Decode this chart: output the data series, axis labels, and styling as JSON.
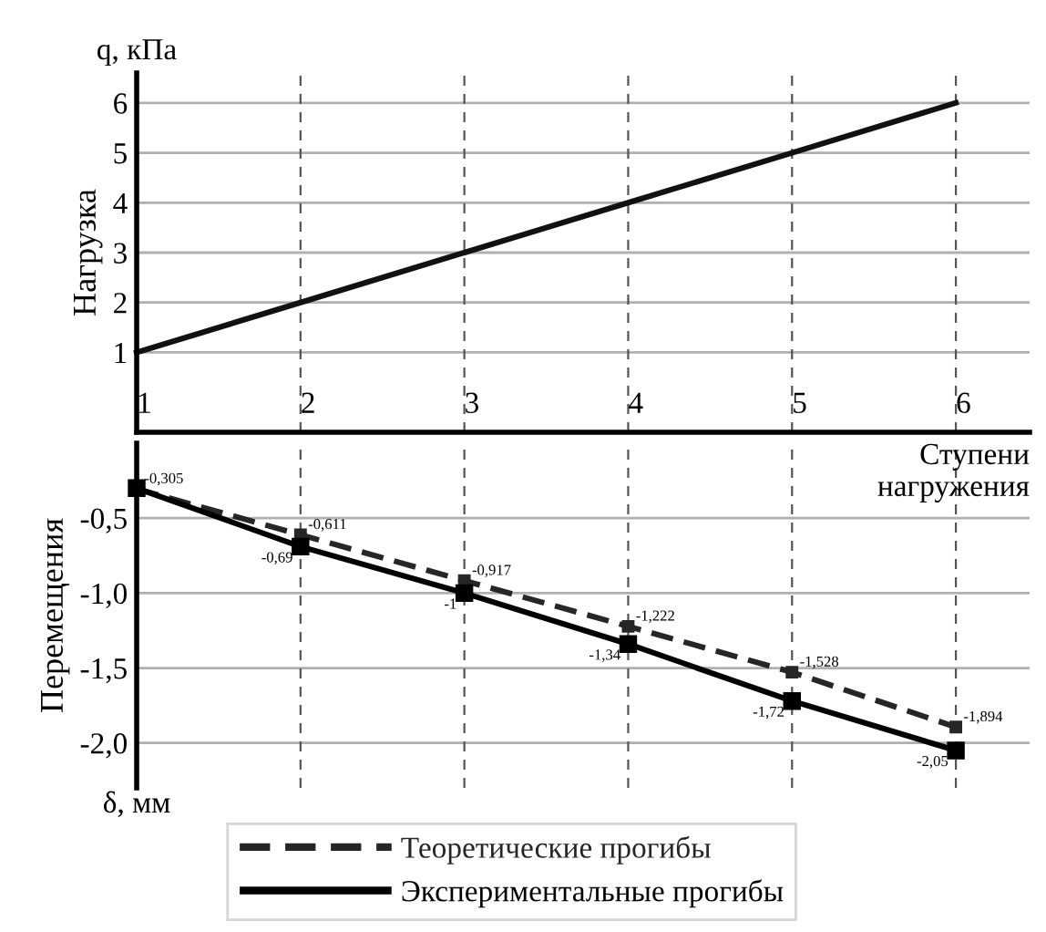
{
  "chart_data": [
    {
      "type": "line",
      "ylabel": "Нагрузка",
      "xlabel": "Ступени\nнагружения",
      "annotations": [
        "q, кПа"
      ],
      "x": [
        1,
        2,
        3,
        4,
        5,
        6
      ],
      "xlim": [
        1,
        6.45
      ],
      "xticks": [
        1,
        2,
        3,
        4,
        5,
        6
      ],
      "ylim": [
        -0.6,
        6.6
      ],
      "yticks": [
        1,
        2,
        3,
        4,
        5,
        6
      ],
      "grid": true,
      "marker": "none",
      "series": [
        {
          "color": "#111111",
          "values": [
            1,
            2,
            3,
            4,
            5,
            6
          ],
          "line_style": "solid"
        }
      ]
    },
    {
      "type": "line",
      "ylabel": "Перемещения",
      "annotations": [
        "δ, мм"
      ],
      "tick_labels": "y",
      "legend": "bottom",
      "marker": "square",
      "x": [
        1,
        2,
        3,
        4,
        5,
        6
      ],
      "xlim": [
        1,
        6.45
      ],
      "xticks": [
        1,
        2,
        3,
        4,
        5,
        6
      ],
      "ylim": [
        -2.3,
        0
      ],
      "yticks": [
        {
          "value": -0.5,
          "label": "-0,5"
        },
        {
          "value": -1.0,
          "label": "-1,0"
        },
        {
          "value": -1.5,
          "label": "-1,5"
        },
        {
          "value": -2.0,
          "label": "-2,0"
        }
      ],
      "grid": true,
      "series": [
        {
          "name": "Теоретические прогибы",
          "color": "#262626",
          "line_style": "dashed",
          "values": [
            -0.305,
            -0.611,
            -0.917,
            -1.222,
            -1.528,
            -1.894
          ],
          "value_labels": [
            "-0,305",
            "-0,611",
            "-0,917",
            "-1,222",
            "-1,528",
            "-1,894"
          ]
        },
        {
          "name": "Экспериментальные прогибы",
          "color": "#000000",
          "line_style": "solid",
          "values": [
            -0.3,
            -0.69,
            -1,
            -1.34,
            -1.72,
            -2.05
          ],
          "value_labels": [
            null,
            "-0,69",
            "-1",
            "-1,34",
            "-1,72",
            "-2,05"
          ]
        }
      ]
    }
  ]
}
